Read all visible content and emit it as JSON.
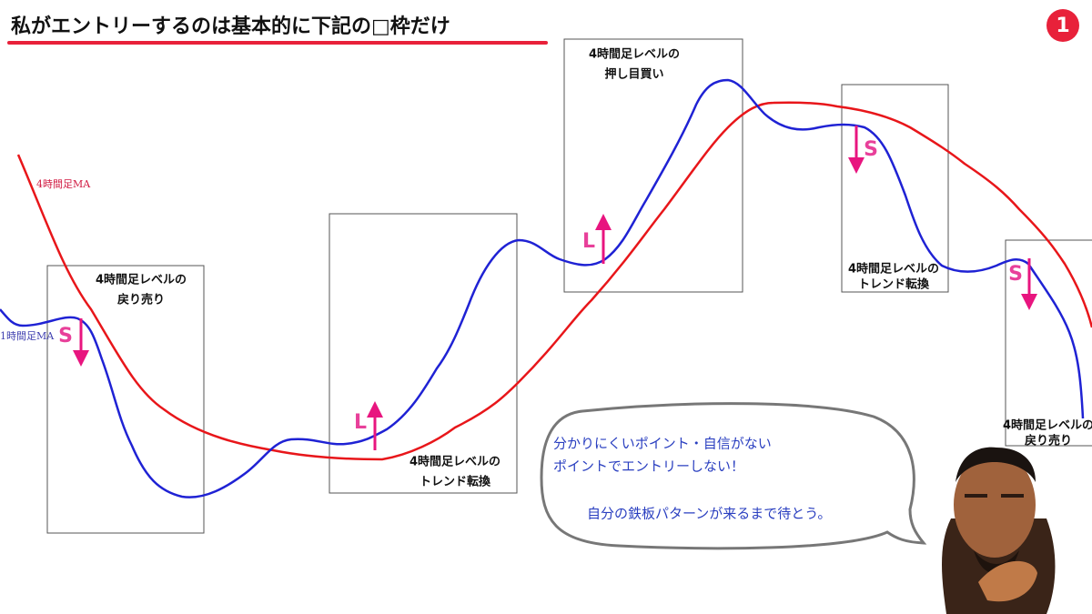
{
  "header": {
    "title": "私がエントリーするのは基本的に下記の□枠だけ",
    "badge": "1"
  },
  "ma_labels": [
    "4時間足MA",
    "1時間足MA"
  ],
  "boxes": [
    {
      "label": [
        "4時間足レベルの",
        "戻り売り"
      ],
      "signal": "S"
    },
    {
      "label": [
        "4時間足レベルの",
        "トレンド転換"
      ],
      "signal": "L"
    },
    {
      "label": [
        "4時間足レベルの",
        "押し目買い"
      ],
      "signal": "L"
    },
    {
      "label": [
        "4時間足レベルの",
        "トレンド転換"
      ],
      "signal": "S"
    },
    {
      "label": [
        "4時間足レベルの",
        "戻り売り"
      ],
      "signal": "S"
    }
  ],
  "bubble": {
    "lines": [
      "分かりにくいポイント・自信がない",
      "ポイントでエントリーしない！",
      "自分の鉄板パターンが来るまで待とう。"
    ]
  }
}
